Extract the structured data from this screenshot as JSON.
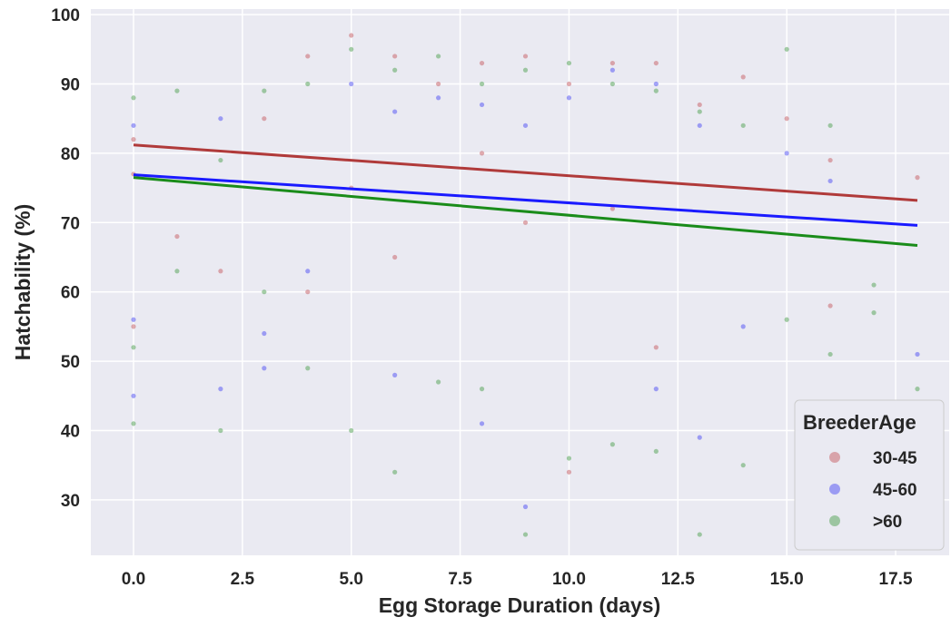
{
  "chart_data": {
    "type": "scatter",
    "xlabel": "Egg Storage Duration (days)",
    "ylabel": "Hatchability (%)",
    "xlim": [
      -0.98,
      18.73
    ],
    "ylim": [
      22,
      100.8
    ],
    "xticks": [
      {
        "value": 0,
        "label": "0.0"
      },
      2.5,
      {
        "value": 5,
        "label": "5.0"
      },
      7.5,
      {
        "value": 10,
        "label": "10.0"
      },
      12.5,
      {
        "value": 15,
        "label": "15.0"
      },
      17.5
    ],
    "yticks": [
      30,
      40,
      50,
      60,
      70,
      80,
      90,
      100
    ],
    "grid": true,
    "legend_title": "BreederAge",
    "legend_position": "lower right",
    "series": [
      {
        "name": "30-45",
        "color": "#c44e52",
        "x": [
          0,
          0,
          0,
          1,
          2,
          3,
          4,
          4,
          5,
          5,
          6,
          6,
          7,
          8,
          8,
          9,
          9,
          10,
          10,
          11,
          11,
          12,
          12,
          13,
          14,
          15,
          16,
          16,
          18
        ],
        "values": [
          82,
          77,
          55,
          68,
          63,
          85,
          94,
          60,
          97,
          75,
          94,
          65,
          90,
          93,
          80,
          94,
          70,
          90,
          34,
          93,
          72,
          93,
          52,
          87,
          91,
          85,
          79,
          58,
          76.5
        ]
      },
      {
        "name": "45-60",
        "color": "#3b3bf5",
        "x": [
          0,
          0,
          0,
          2,
          2,
          3,
          3,
          4,
          5,
          6,
          6,
          7,
          8,
          8,
          9,
          9,
          10,
          11,
          12,
          12,
          13,
          13,
          14,
          15,
          16,
          18
        ],
        "values": [
          84,
          56,
          45,
          85,
          46,
          54,
          49,
          63,
          90,
          48,
          86,
          88,
          41,
          87,
          29,
          84,
          88,
          92,
          46,
          90,
          39,
          84,
          55,
          80,
          76,
          51
        ]
      },
      {
        "name": ">60",
        "color": "#3d9a3d",
        "x": [
          0,
          0,
          0,
          1,
          1,
          2,
          2,
          3,
          3,
          4,
          4,
          5,
          5,
          6,
          6,
          7,
          7,
          8,
          8,
          9,
          9,
          10,
          10,
          11,
          11,
          12,
          12,
          13,
          13,
          14,
          14,
          15,
          15,
          16,
          16,
          17,
          17,
          18
        ],
        "values": [
          88,
          52,
          41,
          89,
          63,
          79,
          40,
          89,
          60,
          90,
          49,
          95,
          40,
          92,
          34,
          94,
          47,
          90,
          46,
          92,
          25,
          93,
          36,
          90,
          38,
          89,
          37,
          86,
          25,
          84,
          35,
          95,
          56,
          84,
          51,
          61,
          57,
          46
        ]
      }
    ],
    "regression_lines": [
      {
        "color": "#b03a3a",
        "x": [
          0,
          18
        ],
        "values": [
          81.2,
          73.2
        ]
      },
      {
        "color": "#1a1aff",
        "x": [
          0,
          18
        ],
        "values": [
          76.9,
          69.6
        ]
      },
      {
        "color": "#1a8c1a",
        "x": [
          0,
          18
        ],
        "values": [
          76.5,
          66.7
        ]
      }
    ]
  }
}
